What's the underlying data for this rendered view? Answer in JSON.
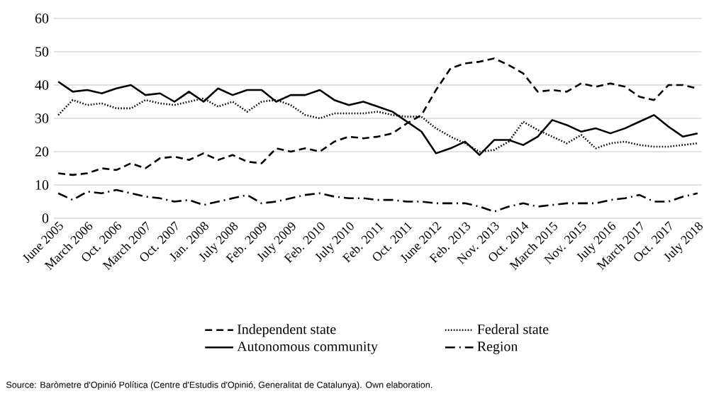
{
  "chart_data": {
    "type": "line",
    "categories": [
      "June 2005",
      null,
      "March 2006",
      null,
      "Oct. 2006",
      null,
      "March 2007",
      null,
      "Oct. 2007",
      null,
      "Jan. 2008",
      null,
      "July 2008",
      null,
      "Feb. 2009",
      null,
      "July 2009",
      null,
      "Feb. 2010",
      null,
      "July 2010",
      null,
      "Feb. 2011",
      null,
      "Oct. 2011",
      null,
      "June 2012",
      null,
      "Feb. 2013",
      null,
      "Nov. 2013",
      null,
      "Oct. 2014",
      null,
      "March 2015",
      null,
      "Nov. 2015",
      null,
      "July 2016",
      null,
      "March 2017",
      null,
      "Oct. 2017",
      null,
      "July 2018"
    ],
    "series": [
      {
        "name": "Independent state",
        "color": "#000000",
        "line_style": "dashed",
        "values": [
          13.5,
          13,
          13.5,
          15,
          14.5,
          16.5,
          15,
          18,
          18.5,
          17.5,
          19.5,
          17.5,
          19,
          17,
          16.5,
          21,
          20,
          21,
          20,
          23,
          24.5,
          24,
          24.5,
          25.5,
          28.5,
          31,
          38.5,
          45,
          46.5,
          47,
          48,
          46,
          43.5,
          38,
          38.5,
          38,
          40.5,
          39.5,
          40.5,
          39.5,
          36.5,
          35.5,
          40,
          40,
          39
        ]
      },
      {
        "name": "Federal  state",
        "color": "#000000",
        "line_style": "dotted",
        "values": [
          31,
          35.5,
          34,
          34.5,
          33,
          33,
          35.5,
          34.5,
          34,
          35,
          36,
          33.5,
          35,
          32,
          35,
          35.5,
          34,
          31,
          30,
          31.5,
          31.5,
          31.5,
          32,
          31,
          30.5,
          30.5,
          27,
          24.5,
          22.5,
          20,
          20.5,
          23,
          29,
          26.5,
          24.5,
          22.5,
          25,
          21,
          22.5,
          23,
          22,
          21.5,
          21.5,
          22,
          22.5
        ]
      },
      {
        "name": "Autonomous community",
        "color": "#000000",
        "line_style": "solid",
        "values": [
          41,
          38,
          38.5,
          37.5,
          39,
          40,
          37,
          37.5,
          35,
          38,
          35,
          39,
          37,
          38.5,
          38.5,
          35,
          37,
          37,
          38.5,
          35.5,
          34,
          35,
          33.5,
          32,
          29,
          26,
          19.5,
          21,
          23,
          19,
          23.5,
          23.5,
          22,
          24.5,
          29.5,
          28,
          26,
          27,
          25.5,
          27,
          29,
          31,
          27.5,
          24.5,
          25.5
        ]
      },
      {
        "name": "Region",
        "color": "#000000",
        "line_style": "dashdot",
        "values": [
          7.5,
          5.5,
          8,
          7.5,
          8.5,
          7.5,
          6.5,
          6,
          5,
          5.5,
          4,
          5,
          6,
          7,
          4.5,
          5,
          6,
          7,
          7.5,
          6.5,
          6,
          6,
          5.5,
          5.5,
          5,
          5,
          4.5,
          4.5,
          4.5,
          3.5,
          2,
          3.5,
          4.5,
          3.5,
          4,
          4.5,
          4.5,
          4.5,
          5.5,
          6,
          7,
          5,
          5,
          6.5,
          7.5
        ]
      }
    ],
    "ylim": [
      0,
      60
    ],
    "yticks": [
      0,
      10,
      20,
      30,
      40,
      50,
      60
    ],
    "grid": "y",
    "legend": "bottom",
    "marker": "none",
    "annotations": [
      "Source: Baròmetre d'Opinió Política (Centre d'Estudis d'Opinió, Generalitat de Catalunya). Own elaboration."
    ]
  }
}
